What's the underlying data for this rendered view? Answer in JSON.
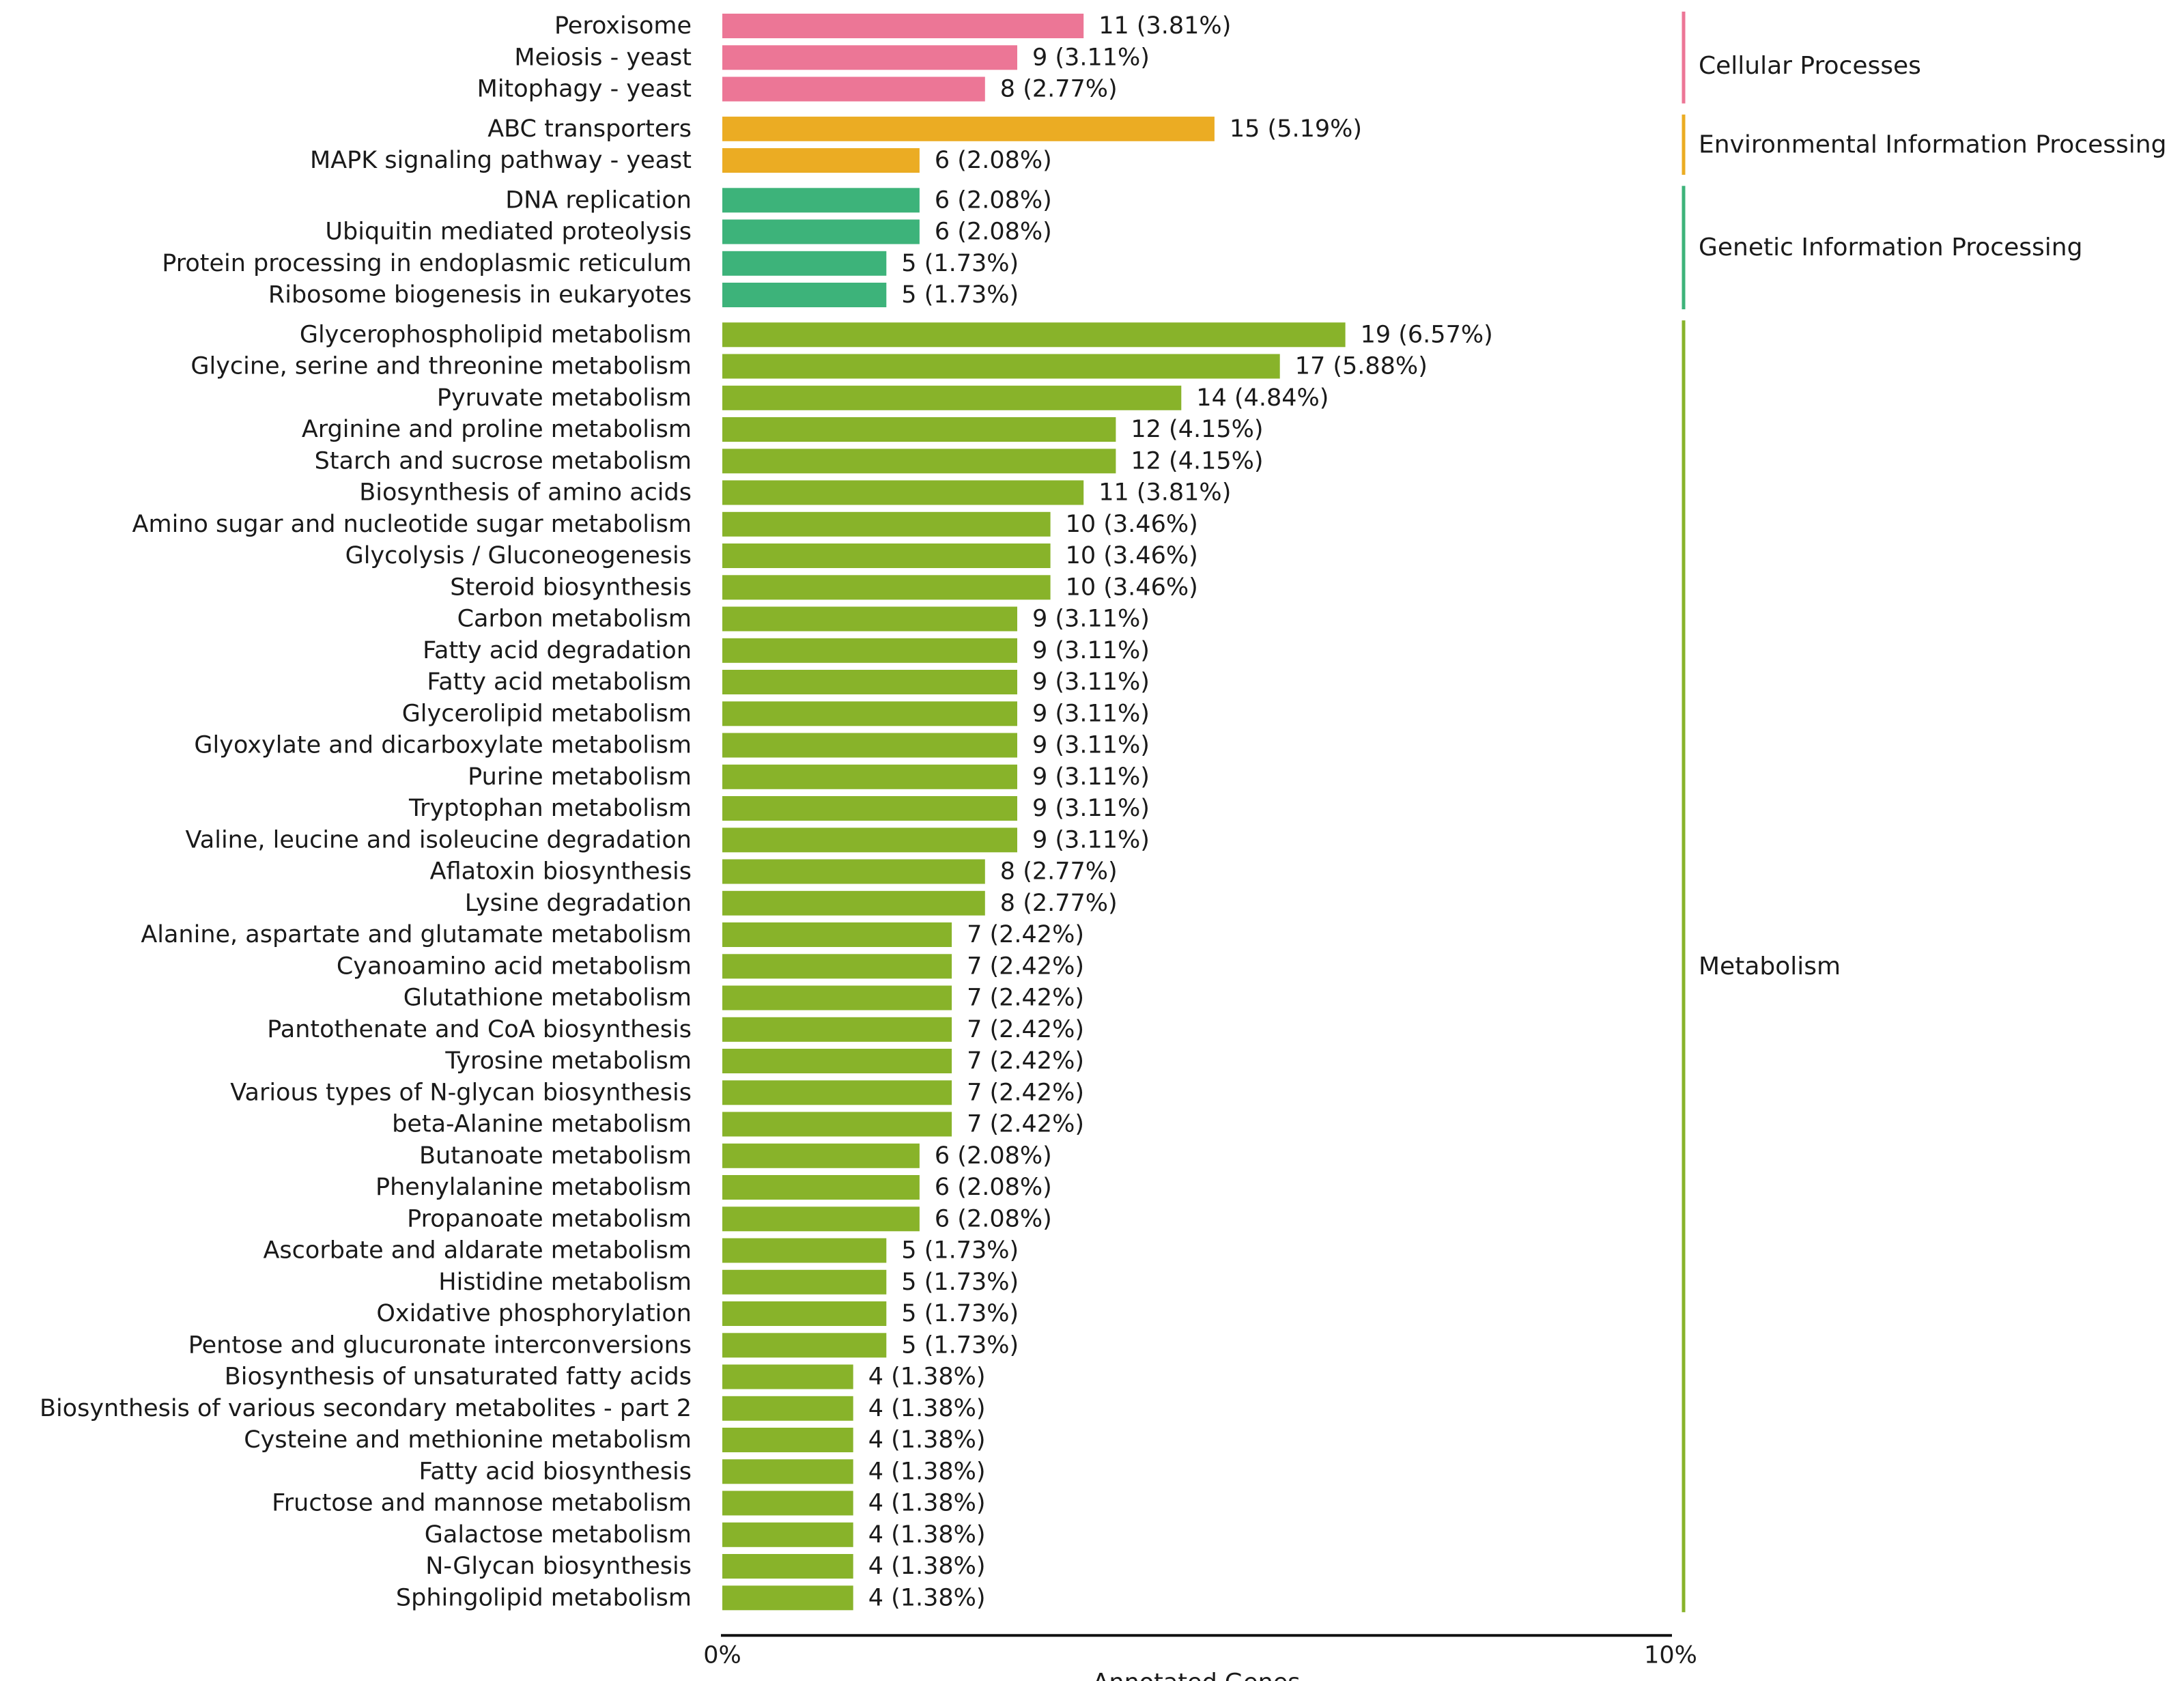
{
  "chart_data": {
    "type": "bar",
    "orientation": "horizontal",
    "xlabel": "Annotated Genes",
    "xlim": [
      0,
      10
    ],
    "xtick_labels": [
      "0%",
      "10%"
    ],
    "groups": [
      {
        "name": "Cellular Processes",
        "color": "#ec7696",
        "items": [
          {
            "label": "Peroxisome",
            "value": 11,
            "percent": 3.81,
            "text": "11 (3.81%)"
          },
          {
            "label": "Meiosis - yeast",
            "value": 9,
            "percent": 3.11,
            "text": "9 (3.11%)"
          },
          {
            "label": "Mitophagy - yeast",
            "value": 8,
            "percent": 2.77,
            "text": "8 (2.77%)"
          }
        ]
      },
      {
        "name": "Environmental Information Processing",
        "color": "#ebac23",
        "items": [
          {
            "label": "ABC transporters",
            "value": 15,
            "percent": 5.19,
            "text": "15 (5.19%)"
          },
          {
            "label": "MAPK signaling pathway - yeast",
            "value": 6,
            "percent": 2.08,
            "text": "6 (2.08%)"
          }
        ]
      },
      {
        "name": "Genetic Information Processing",
        "color": "#3db37a",
        "items": [
          {
            "label": "DNA replication",
            "value": 6,
            "percent": 2.08,
            "text": "6 (2.08%)"
          },
          {
            "label": "Ubiquitin mediated proteolysis",
            "value": 6,
            "percent": 2.08,
            "text": "6 (2.08%)"
          },
          {
            "label": "Protein processing in endoplasmic reticulum",
            "value": 5,
            "percent": 1.73,
            "text": "5 (1.73%)"
          },
          {
            "label": "Ribosome biogenesis in eukaryotes",
            "value": 5,
            "percent": 1.73,
            "text": "5 (1.73%)"
          }
        ]
      },
      {
        "name": "Metabolism",
        "color": "#88b32a",
        "items": [
          {
            "label": "Glycerophospholipid metabolism",
            "value": 19,
            "percent": 6.57,
            "text": "19 (6.57%)"
          },
          {
            "label": "Glycine, serine and threonine metabolism",
            "value": 17,
            "percent": 5.88,
            "text": "17 (5.88%)"
          },
          {
            "label": "Pyruvate metabolism",
            "value": 14,
            "percent": 4.84,
            "text": "14 (4.84%)"
          },
          {
            "label": "Arginine and proline metabolism",
            "value": 12,
            "percent": 4.15,
            "text": "12 (4.15%)"
          },
          {
            "label": "Starch and sucrose metabolism",
            "value": 12,
            "percent": 4.15,
            "text": "12 (4.15%)"
          },
          {
            "label": "Biosynthesis of amino acids",
            "value": 11,
            "percent": 3.81,
            "text": "11 (3.81%)"
          },
          {
            "label": "Amino sugar and nucleotide sugar metabolism",
            "value": 10,
            "percent": 3.46,
            "text": "10 (3.46%)"
          },
          {
            "label": "Glycolysis / Gluconeogenesis",
            "value": 10,
            "percent": 3.46,
            "text": "10 (3.46%)"
          },
          {
            "label": "Steroid biosynthesis",
            "value": 10,
            "percent": 3.46,
            "text": "10 (3.46%)"
          },
          {
            "label": "Carbon metabolism",
            "value": 9,
            "percent": 3.11,
            "text": "9 (3.11%)"
          },
          {
            "label": "Fatty acid degradation",
            "value": 9,
            "percent": 3.11,
            "text": "9 (3.11%)"
          },
          {
            "label": "Fatty acid metabolism",
            "value": 9,
            "percent": 3.11,
            "text": "9 (3.11%)"
          },
          {
            "label": "Glycerolipid metabolism",
            "value": 9,
            "percent": 3.11,
            "text": "9 (3.11%)"
          },
          {
            "label": "Glyoxylate and dicarboxylate metabolism",
            "value": 9,
            "percent": 3.11,
            "text": "9 (3.11%)"
          },
          {
            "label": "Purine metabolism",
            "value": 9,
            "percent": 3.11,
            "text": "9 (3.11%)"
          },
          {
            "label": "Tryptophan metabolism",
            "value": 9,
            "percent": 3.11,
            "text": "9 (3.11%)"
          },
          {
            "label": "Valine, leucine and isoleucine degradation",
            "value": 9,
            "percent": 3.11,
            "text": "9 (3.11%)"
          },
          {
            "label": "Aflatoxin biosynthesis",
            "value": 8,
            "percent": 2.77,
            "text": "8 (2.77%)"
          },
          {
            "label": "Lysine degradation",
            "value": 8,
            "percent": 2.77,
            "text": "8 (2.77%)"
          },
          {
            "label": "Alanine, aspartate and glutamate metabolism",
            "value": 7,
            "percent": 2.42,
            "text": "7 (2.42%)"
          },
          {
            "label": "Cyanoamino acid metabolism",
            "value": 7,
            "percent": 2.42,
            "text": "7 (2.42%)"
          },
          {
            "label": "Glutathione metabolism",
            "value": 7,
            "percent": 2.42,
            "text": "7 (2.42%)"
          },
          {
            "label": "Pantothenate and CoA biosynthesis",
            "value": 7,
            "percent": 2.42,
            "text": "7 (2.42%)"
          },
          {
            "label": "Tyrosine metabolism",
            "value": 7,
            "percent": 2.42,
            "text": "7 (2.42%)"
          },
          {
            "label": "Various types of N-glycan biosynthesis",
            "value": 7,
            "percent": 2.42,
            "text": "7 (2.42%)"
          },
          {
            "label": "beta-Alanine metabolism",
            "value": 7,
            "percent": 2.42,
            "text": "7 (2.42%)"
          },
          {
            "label": "Butanoate metabolism",
            "value": 6,
            "percent": 2.08,
            "text": "6 (2.08%)"
          },
          {
            "label": "Phenylalanine metabolism",
            "value": 6,
            "percent": 2.08,
            "text": "6 (2.08%)"
          },
          {
            "label": "Propanoate metabolism",
            "value": 6,
            "percent": 2.08,
            "text": "6 (2.08%)"
          },
          {
            "label": "Ascorbate and aldarate metabolism",
            "value": 5,
            "percent": 1.73,
            "text": "5 (1.73%)"
          },
          {
            "label": "Histidine metabolism",
            "value": 5,
            "percent": 1.73,
            "text": "5 (1.73%)"
          },
          {
            "label": "Oxidative phosphorylation",
            "value": 5,
            "percent": 1.73,
            "text": "5 (1.73%)"
          },
          {
            "label": "Pentose and glucuronate interconversions",
            "value": 5,
            "percent": 1.73,
            "text": "5 (1.73%)"
          },
          {
            "label": "Biosynthesis of unsaturated fatty acids",
            "value": 4,
            "percent": 1.38,
            "text": "4 (1.38%)"
          },
          {
            "label": "Biosynthesis of various secondary metabolites - part 2",
            "value": 4,
            "percent": 1.38,
            "text": "4 (1.38%)"
          },
          {
            "label": "Cysteine and methionine metabolism",
            "value": 4,
            "percent": 1.38,
            "text": "4 (1.38%)"
          },
          {
            "label": "Fatty acid biosynthesis",
            "value": 4,
            "percent": 1.38,
            "text": "4 (1.38%)"
          },
          {
            "label": "Fructose and mannose metabolism",
            "value": 4,
            "percent": 1.38,
            "text": "4 (1.38%)"
          },
          {
            "label": "Galactose metabolism",
            "value": 4,
            "percent": 1.38,
            "text": "4 (1.38%)"
          },
          {
            "label": "N-Glycan biosynthesis",
            "value": 4,
            "percent": 1.38,
            "text": "4 (1.38%)"
          },
          {
            "label": "Sphingolipid metabolism",
            "value": 4,
            "percent": 1.38,
            "text": "4 (1.38%)"
          }
        ]
      }
    ]
  }
}
